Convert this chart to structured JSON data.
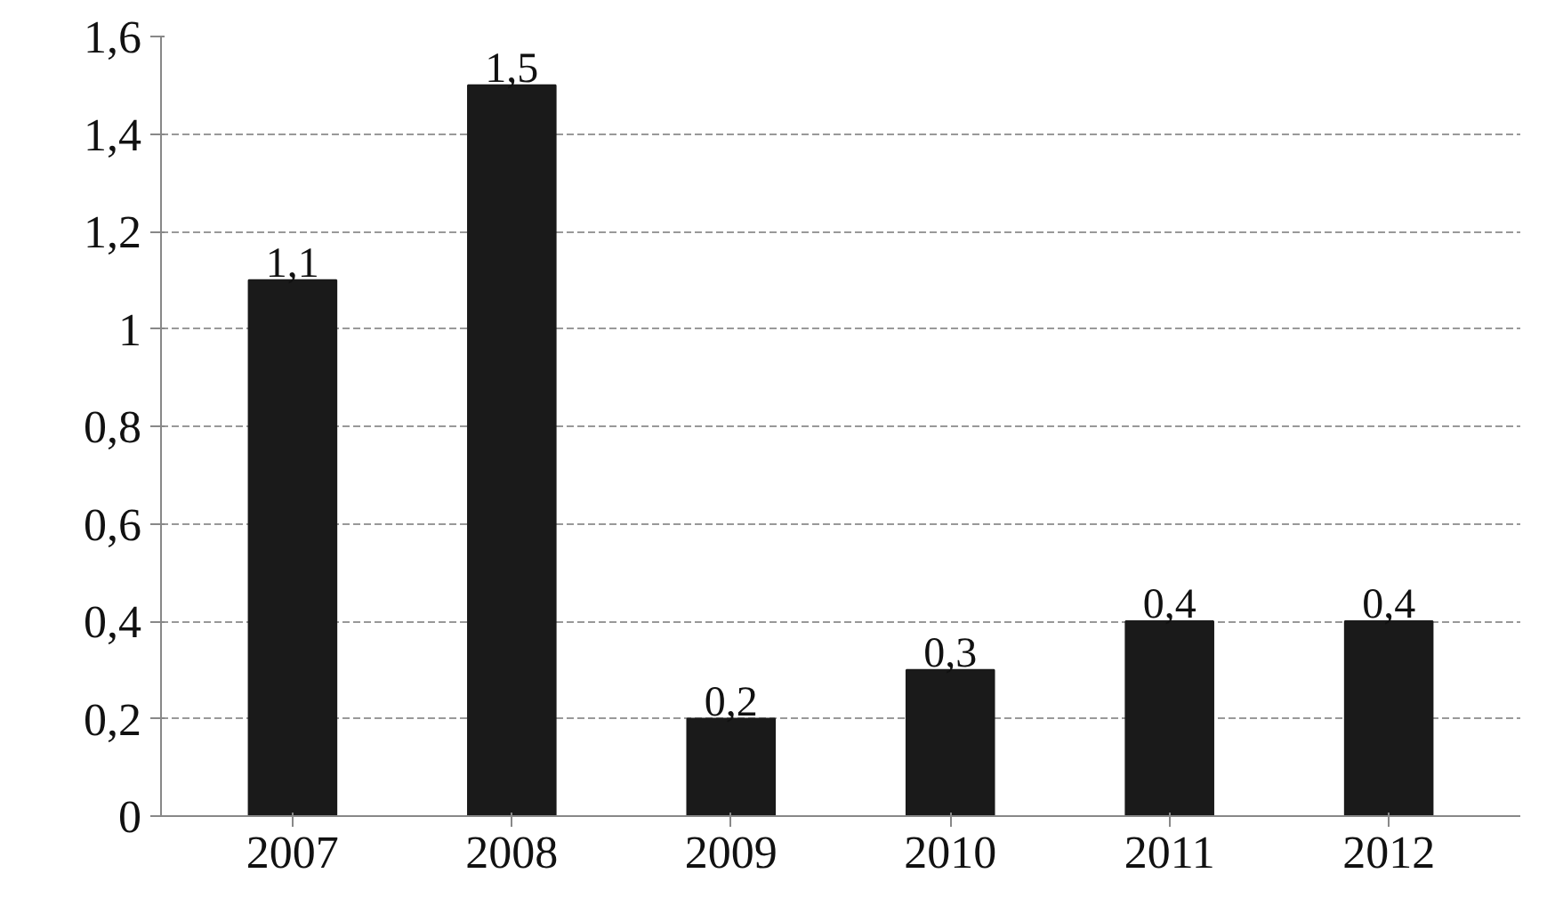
{
  "chart_data": {
    "type": "bar",
    "categories": [
      "2007",
      "2008",
      "2009",
      "2010",
      "2011",
      "2012"
    ],
    "values": [
      1.1,
      1.5,
      0.2,
      0.3,
      0.4,
      0.4
    ],
    "value_labels": [
      "1,1",
      "1,5",
      "0,2",
      "0,3",
      "0,4",
      "0,4"
    ],
    "color": "#1a1a1a",
    "ylim": [
      0,
      1.6
    ],
    "yticks": [
      0,
      {
        "value": 0.2,
        "label": "0,2"
      },
      {
        "value": 0.4,
        "label": "0,4"
      },
      {
        "value": 0.6,
        "label": "0,6"
      },
      {
        "value": 0.8,
        "label": "0,8"
      },
      1,
      {
        "value": 1.2,
        "label": "1,2"
      },
      {
        "value": 1.4,
        "label": "1,4"
      },
      {
        "value": 1.6,
        "label": "1,6"
      }
    ],
    "grid": "y"
  }
}
